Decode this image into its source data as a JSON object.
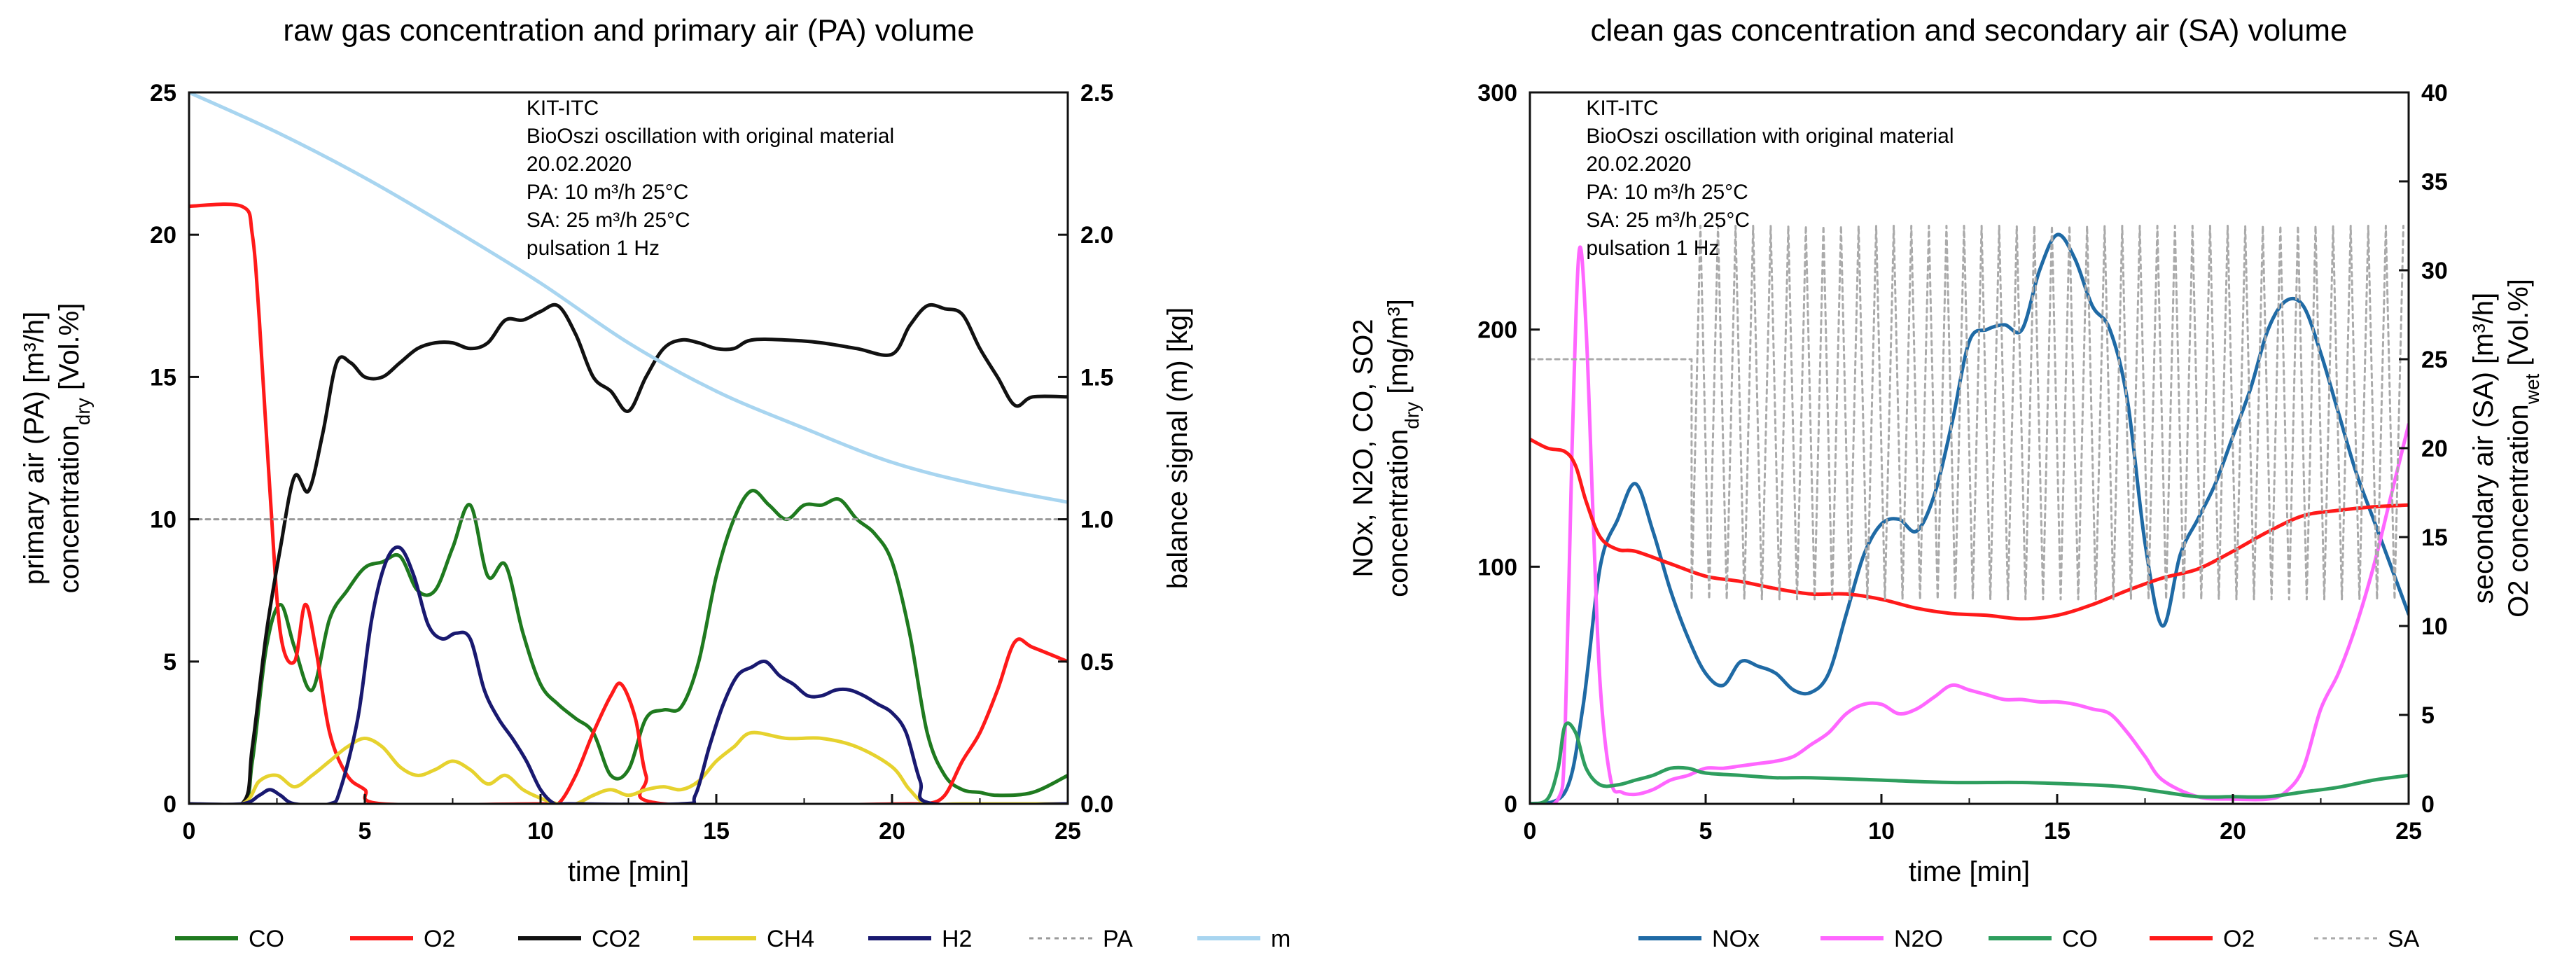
{
  "chart_data": [
    {
      "type": "line",
      "title": "raw gas concentration and primary air (PA) volume",
      "xlabel": "time [min]",
      "ylabel_left_line1": "primary air (PA) [m³/h]",
      "ylabel_left_line2_main": "concentration",
      "ylabel_left_line2_sub": "dry",
      "ylabel_left_line2_tail": " [Vol.%]",
      "ylabel_right": "balance signal (m) [kg]",
      "xlim": [
        0,
        25
      ],
      "ylim_left": [
        0,
        25
      ],
      "ylim_right": [
        0,
        2.5
      ],
      "x_ticks": [
        "0",
        "5",
        "10",
        "15",
        "20",
        "25"
      ],
      "y_ticks_left": [
        "0",
        "5",
        "10",
        "15",
        "20",
        "25"
      ],
      "y_ticks_right": [
        "0.0",
        "0.5",
        "1.0",
        "1.5",
        "2.0",
        "2.5"
      ],
      "annotation": [
        "KIT-ITC",
        "BioOszi oscillation with original material",
        "20.02.2020",
        "PA: 10 m³/h 25°C",
        "SA: 25 m³/h 25°C",
        "pulsation 1 Hz"
      ],
      "series": [
        {
          "name": "CO",
          "color": "#1f7a1f",
          "axis": "left",
          "dash": false,
          "x": [
            0,
            1.5,
            1.8,
            2.2,
            2.6,
            3.0,
            3.5,
            4.0,
            4.5,
            5.0,
            5.5,
            6.0,
            6.5,
            7.0,
            7.5,
            8.0,
            8.5,
            9.0,
            9.5,
            10.0,
            10.5,
            11.0,
            11.5,
            12.0,
            12.5,
            13.0,
            13.5,
            14.0,
            14.5,
            15.0,
            15.5,
            16.0,
            16.5,
            17.0,
            17.5,
            18.0,
            18.5,
            19.0,
            19.5,
            20.0,
            20.5,
            21.0,
            21.5,
            22.0,
            22.5,
            23.0,
            24.0,
            25.0
          ],
          "y": [
            0,
            0,
            1.5,
            5.5,
            7.0,
            5.5,
            4.0,
            6.5,
            7.5,
            8.3,
            8.5,
            8.7,
            7.5,
            7.5,
            9.0,
            10.5,
            8.0,
            8.4,
            6.0,
            4.2,
            3.5,
            3.0,
            2.5,
            1.0,
            1.2,
            3.0,
            3.3,
            3.4,
            5.0,
            8.0,
            10.0,
            11.0,
            10.5,
            10.0,
            10.5,
            10.5,
            10.7,
            10.0,
            9.5,
            8.5,
            6.0,
            2.5,
            1.0,
            0.5,
            0.4,
            0.3,
            0.4,
            1.0
          ]
        },
        {
          "name": "O2",
          "color": "#ff1a1a",
          "axis": "left",
          "dash": false,
          "x": [
            0,
            1.5,
            1.8,
            2.0,
            2.3,
            2.6,
            3.0,
            3.3,
            3.6,
            4.0,
            4.5,
            5.0,
            5.5,
            10.0,
            10.5,
            11.0,
            11.5,
            12.0,
            12.3,
            12.7,
            13.0,
            13.5,
            20.5,
            21.0,
            21.5,
            22.0,
            22.5,
            23.0,
            23.5,
            24.0,
            25.0
          ],
          "y": [
            21,
            21,
            20,
            17,
            11,
            6,
            5,
            7,
            5.5,
            2.5,
            1,
            0.5,
            0,
            0,
            0,
            1.0,
            2.5,
            3.8,
            4.2,
            3.0,
            1.0,
            0,
            0,
            0,
            0.3,
            1.5,
            2.5,
            4.0,
            5.7,
            5.5,
            5.0
          ]
        },
        {
          "name": "CO2",
          "color": "#111111",
          "axis": "left",
          "dash": false,
          "x": [
            0,
            1.5,
            1.8,
            2.2,
            2.6,
            3.0,
            3.4,
            3.8,
            4.2,
            4.6,
            5.0,
            5.5,
            6.0,
            6.5,
            7.0,
            7.5,
            8.0,
            8.5,
            9.0,
            9.5,
            10.0,
            10.5,
            11.0,
            11.5,
            12.0,
            12.5,
            13.0,
            13.5,
            14.0,
            14.5,
            15.0,
            15.5,
            16.0,
            17.0,
            18.0,
            19.0,
            20.0,
            20.5,
            21.0,
            21.5,
            22.0,
            22.5,
            23.0,
            23.5,
            24.0,
            25.0
          ],
          "y": [
            0,
            0,
            2,
            6,
            9,
            11.5,
            11,
            13,
            15.5,
            15.5,
            15,
            15,
            15.5,
            16,
            16.2,
            16.2,
            16,
            16.2,
            17,
            17,
            17.3,
            17.5,
            16.5,
            15,
            14.5,
            13.8,
            15,
            16,
            16.3,
            16.2,
            16,
            16,
            16.3,
            16.3,
            16.2,
            16,
            15.8,
            16.8,
            17.5,
            17.4,
            17.2,
            16,
            15,
            14,
            14.3,
            14.3
          ]
        },
        {
          "name": "CH4",
          "color": "#e6d22e",
          "axis": "left",
          "dash": false,
          "x": [
            0,
            1.5,
            2.0,
            2.5,
            3.0,
            3.5,
            4.0,
            4.5,
            5.0,
            5.5,
            6.0,
            6.5,
            7.0,
            7.5,
            8.0,
            8.5,
            9.0,
            9.5,
            10.0,
            10.5,
            11.0,
            11.5,
            12.0,
            12.5,
            13.0,
            13.5,
            14.0,
            14.5,
            15.0,
            15.5,
            16.0,
            17.0,
            18.0,
            19.0,
            20.0,
            20.5,
            21.0,
            22.0,
            25.0
          ],
          "y": [
            0,
            0,
            0.8,
            1.0,
            0.6,
            1.0,
            1.5,
            2.0,
            2.3,
            2.0,
            1.3,
            1.0,
            1.2,
            1.5,
            1.2,
            0.7,
            1.0,
            0.5,
            0.2,
            0,
            0,
            0.3,
            0.5,
            0.3,
            0.5,
            0.6,
            0.5,
            0.8,
            1.5,
            2.0,
            2.5,
            2.3,
            2.3,
            2.0,
            1.3,
            0.5,
            0,
            0,
            0
          ]
        },
        {
          "name": "H2",
          "color": "#191970",
          "axis": "left",
          "dash": false,
          "x": [
            0,
            1.5,
            2.0,
            2.3,
            2.6,
            3.0,
            4.0,
            4.3,
            4.8,
            5.2,
            5.6,
            6.0,
            6.4,
            6.8,
            7.2,
            7.6,
            8.0,
            8.4,
            8.8,
            9.2,
            9.6,
            10.0,
            10.4,
            10.8,
            14.0,
            14.4,
            14.8,
            15.2,
            15.6,
            16.0,
            16.4,
            16.8,
            17.2,
            17.6,
            18.0,
            18.4,
            18.8,
            19.2,
            19.6,
            20.0,
            20.4,
            20.8,
            21.2,
            25.0
          ],
          "y": [
            0,
            0,
            0.3,
            0.5,
            0.3,
            0,
            0,
            0.5,
            3.0,
            6.5,
            8.5,
            9.0,
            8.0,
            6.3,
            5.8,
            6.0,
            5.8,
            4.0,
            3.0,
            2.3,
            1.5,
            0.5,
            0,
            0,
            0,
            0.3,
            2.0,
            3.5,
            4.5,
            4.8,
            5.0,
            4.5,
            4.2,
            3.8,
            3.8,
            4.0,
            4.0,
            3.8,
            3.5,
            3.2,
            2.5,
            0.8,
            0,
            0
          ]
        },
        {
          "name": "PA",
          "color": "#9a9a9a",
          "axis": "left",
          "dash": true,
          "x": [
            0,
            2.0,
            4.0,
            6.0,
            8.0,
            10.0,
            12.0,
            14.0,
            16.0,
            18.0,
            20.0,
            22.0,
            24.0,
            25.0
          ],
          "y": [
            10.0,
            10.0,
            10.0,
            10.0,
            10.0,
            10.0,
            10.0,
            10.0,
            10.0,
            10.0,
            10.0,
            10.0,
            10.0,
            10.0
          ]
        },
        {
          "name": "m",
          "color": "#a8d5f0",
          "axis": "right",
          "dash": false,
          "x": [
            0,
            2.5,
            5.0,
            7.5,
            10.0,
            12.5,
            15.0,
            17.5,
            20.0,
            22.5,
            25.0
          ],
          "y": [
            2.5,
            2.36,
            2.2,
            2.02,
            1.83,
            1.62,
            1.45,
            1.32,
            1.2,
            1.12,
            1.06
          ]
        }
      ],
      "legend": {
        "placement": "bottom"
      }
    },
    {
      "type": "line",
      "title": "clean gas concentration and secondary air (SA) volume",
      "xlabel": "time [min]",
      "ylabel_left_line1": "NOx, N2O, CO, SO2",
      "ylabel_left_line2_main": "concentration",
      "ylabel_left_line2_sub": "dry",
      "ylabel_left_line2_tail": " [mg/m³]",
      "ylabel_right_line1": "secondary air (SA) [m³/h]",
      "ylabel_right_line2_main": "O2 concentration",
      "ylabel_right_line2_sub": "wet",
      "ylabel_right_line2_tail": " [Vol.%]",
      "xlim": [
        0,
        25
      ],
      "ylim_left": [
        0,
        300
      ],
      "ylim_right": [
        0,
        40
      ],
      "x_ticks": [
        "0",
        "5",
        "10",
        "15",
        "20",
        "25"
      ],
      "y_ticks_left": [
        "0",
        "100",
        "200",
        "300"
      ],
      "y_ticks_right": [
        "0",
        "5",
        "10",
        "15",
        "20",
        "25",
        "30",
        "35",
        "40"
      ],
      "annotation": [
        "KIT-ITC",
        "BioOszi oscillation with original material",
        "20.02.2020",
        "PA: 10 m³/h 25°C",
        "SA: 25 m³/h 25°C",
        "pulsation 1 Hz"
      ],
      "series": [
        {
          "name": "NOx",
          "color": "#1f6aa5",
          "axis": "left",
          "dash": false,
          "x": [
            0,
            1.0,
            1.5,
            2.0,
            2.5,
            3.0,
            3.5,
            4.0,
            4.5,
            5.0,
            5.5,
            6.0,
            6.5,
            7.0,
            7.5,
            8.0,
            8.5,
            9.0,
            9.5,
            10.0,
            10.5,
            11.0,
            11.5,
            12.0,
            12.5,
            13.0,
            13.5,
            14.0,
            14.5,
            15.0,
            15.5,
            16.0,
            16.5,
            17.0,
            17.5,
            18.0,
            18.5,
            19.0,
            19.5,
            20.0,
            20.5,
            21.0,
            21.5,
            22.0,
            22.5,
            23.0,
            23.5,
            24.0,
            24.5,
            25.0
          ],
          "y": [
            0,
            5,
            40,
            100,
            120,
            135,
            115,
            90,
            70,
            55,
            50,
            60,
            58,
            55,
            48,
            47,
            55,
            80,
            105,
            118,
            120,
            115,
            130,
            160,
            195,
            200,
            202,
            200,
            225,
            240,
            230,
            210,
            200,
            170,
            110,
            75,
            105,
            120,
            135,
            155,
            175,
            200,
            212,
            210,
            190,
            165,
            140,
            120,
            100,
            80
          ]
        },
        {
          "name": "N2O",
          "color": "#ff66ff",
          "axis": "left",
          "dash": false,
          "x": [
            0,
            0.8,
            1.0,
            1.2,
            1.4,
            1.6,
            1.8,
            2.0,
            2.3,
            2.6,
            3.0,
            3.5,
            4.0,
            4.5,
            5.0,
            5.5,
            6.0,
            6.5,
            7.0,
            7.5,
            8.0,
            8.5,
            9.0,
            9.5,
            10.0,
            10.5,
            11.0,
            11.5,
            12.0,
            12.5,
            13.0,
            13.5,
            14.0,
            14.5,
            15.0,
            15.5,
            16.0,
            16.5,
            17.0,
            17.5,
            18.0,
            19.0,
            20.0,
            21.0,
            21.5,
            22.0,
            22.5,
            23.0,
            23.5,
            24.0,
            24.5,
            25.0
          ],
          "y": [
            0,
            2,
            30,
            150,
            233,
            200,
            120,
            50,
            10,
            5,
            4,
            6,
            10,
            12,
            15,
            15,
            16,
            17,
            18,
            20,
            25,
            30,
            38,
            42,
            42,
            38,
            40,
            45,
            50,
            48,
            46,
            44,
            44,
            43,
            43,
            42,
            40,
            38,
            30,
            20,
            10,
            3,
            2,
            2,
            5,
            15,
            40,
            55,
            75,
            100,
            130,
            160
          ]
        },
        {
          "name": "CO",
          "color": "#2e9e5e",
          "axis": "left",
          "dash": false,
          "x": [
            0,
            0.5,
            0.8,
            1.0,
            1.3,
            1.6,
            2.0,
            2.5,
            3.0,
            3.5,
            4.0,
            4.5,
            5.0,
            6.0,
            7.0,
            8.0,
            10.0,
            12.0,
            14.0,
            16.0,
            17.0,
            18.0,
            19.0,
            20.0,
            21.0,
            22.0,
            23.0,
            24.0,
            25.0
          ],
          "y": [
            0,
            2,
            15,
            33,
            30,
            15,
            8,
            8,
            10,
            12,
            15,
            15,
            13,
            12,
            11,
            11,
            10,
            9,
            9,
            8,
            7,
            5,
            3,
            3,
            3,
            5,
            7,
            10,
            12
          ]
        },
        {
          "name": "O2",
          "color": "#ff1a1a",
          "axis": "right",
          "dash": false,
          "x": [
            0,
            0.5,
            1.0,
            1.3,
            1.6,
            2.0,
            2.5,
            3.0,
            4.0,
            5.0,
            6.0,
            7.0,
            8.0,
            9.0,
            10.0,
            11.0,
            12.0,
            13.0,
            14.0,
            15.0,
            16.0,
            17.0,
            18.0,
            19.0,
            20.0,
            21.0,
            22.0,
            23.0,
            24.0,
            25.0
          ],
          "y": [
            20.5,
            20.0,
            19.8,
            19.0,
            17.0,
            15.0,
            14.3,
            14.2,
            13.5,
            12.8,
            12.5,
            12.1,
            11.8,
            11.8,
            11.5,
            11.0,
            10.7,
            10.6,
            10.4,
            10.6,
            11.2,
            12.0,
            12.7,
            13.2,
            14.2,
            15.3,
            16.2,
            16.5,
            16.7,
            16.8
          ]
        },
        {
          "name": "SA",
          "color": "#aaaaaa",
          "axis": "right",
          "dash": true,
          "x": [
            0,
            4.5,
            4.6,
            25.0
          ],
          "y": [
            25.0,
            25.0,
            25.0,
            25.0
          ],
          "oscillation": {
            "start": 4.6,
            "end": 25.0,
            "period": 0.5,
            "low": 11.5,
            "high": 32.5
          }
        }
      ],
      "legend": {
        "placement": "bottom"
      }
    }
  ]
}
